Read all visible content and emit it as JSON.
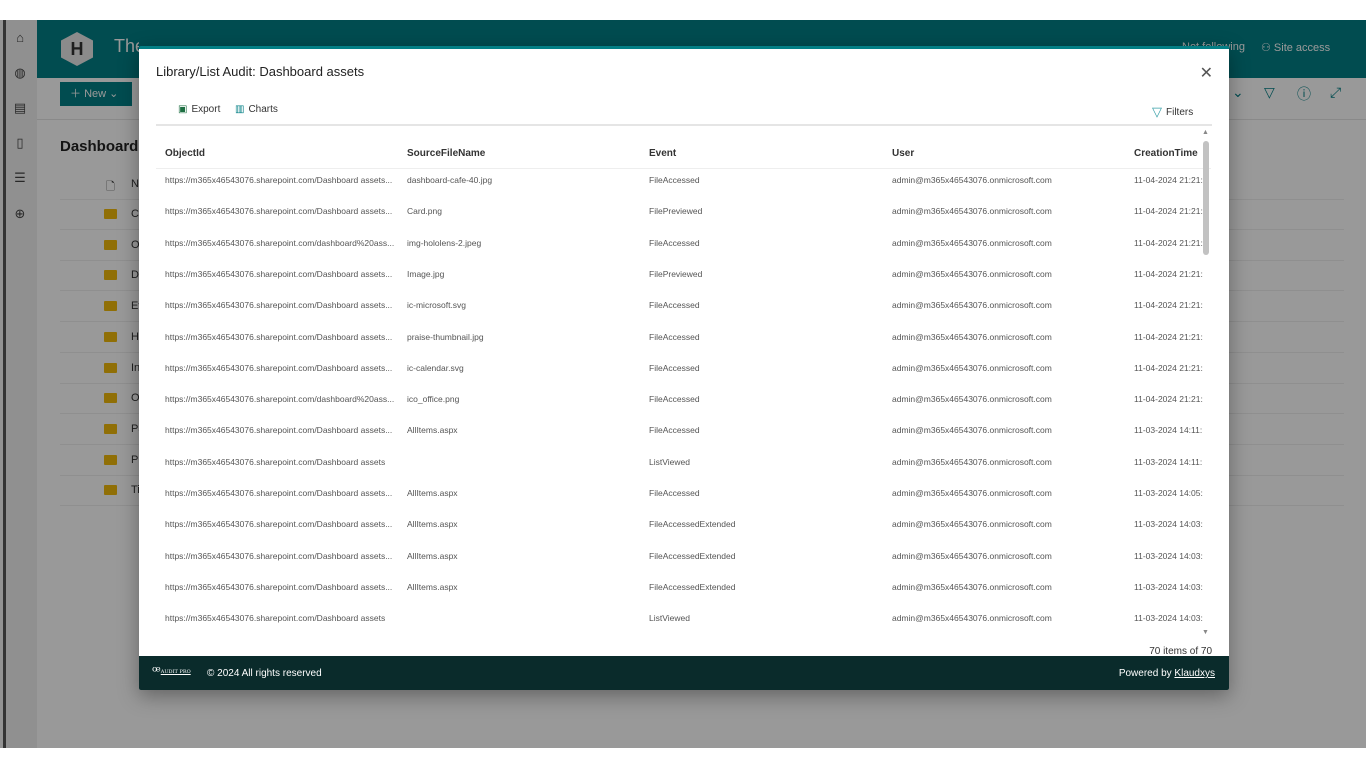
{
  "site": {
    "logo_letter": "H",
    "title": "The Landing",
    "not_following": "Not following",
    "site_access": "Site access",
    "new_label": "New"
  },
  "library": {
    "title": "Dashboard assets",
    "name_header": "Name",
    "folders": [
      "C",
      "O",
      "D",
      "Ev",
      "H",
      "In",
      "O",
      "Pa",
      "Pr",
      "Ti"
    ]
  },
  "modal": {
    "title": "Library/List Audit: Dashboard assets",
    "export_label": "Export",
    "charts_label": "Charts",
    "filters_label": "Filters",
    "columns": [
      "ObjectId",
      "SourceFileName",
      "Event",
      "User",
      "CreationTime"
    ],
    "rows": [
      [
        "https://m365x46543076.sharepoint.com/Dashboard assets...",
        "dashboard-cafe-40.jpg",
        "FileAccessed",
        "admin@m365x46543076.onmicrosoft.com",
        "11-04-2024 21:21:"
      ],
      [
        "https://m365x46543076.sharepoint.com/Dashboard assets...",
        "Card.png",
        "FilePreviewed",
        "admin@m365x46543076.onmicrosoft.com",
        "11-04-2024 21:21:"
      ],
      [
        "https://m365x46543076.sharepoint.com/dashboard%20ass...",
        "img-hololens-2.jpeg",
        "FileAccessed",
        "admin@m365x46543076.onmicrosoft.com",
        "11-04-2024 21:21:"
      ],
      [
        "https://m365x46543076.sharepoint.com/Dashboard assets...",
        "Image.jpg",
        "FilePreviewed",
        "admin@m365x46543076.onmicrosoft.com",
        "11-04-2024 21:21:"
      ],
      [
        "https://m365x46543076.sharepoint.com/Dashboard assets...",
        "ic-microsoft.svg",
        "FileAccessed",
        "admin@m365x46543076.onmicrosoft.com",
        "11-04-2024 21:21:"
      ],
      [
        "https://m365x46543076.sharepoint.com/Dashboard assets...",
        "praise-thumbnail.jpg",
        "FileAccessed",
        "admin@m365x46543076.onmicrosoft.com",
        "11-04-2024 21:21:"
      ],
      [
        "https://m365x46543076.sharepoint.com/Dashboard assets...",
        "ic-calendar.svg",
        "FileAccessed",
        "admin@m365x46543076.onmicrosoft.com",
        "11-04-2024 21:21:"
      ],
      [
        "https://m365x46543076.sharepoint.com/dashboard%20ass...",
        "ico_office.png",
        "FileAccessed",
        "admin@m365x46543076.onmicrosoft.com",
        "11-04-2024 21:21:"
      ],
      [
        "https://m365x46543076.sharepoint.com/Dashboard assets...",
        "AllItems.aspx",
        "FileAccessed",
        "admin@m365x46543076.onmicrosoft.com",
        "11-03-2024 14:11:"
      ],
      [
        "https://m365x46543076.sharepoint.com/Dashboard assets",
        "",
        "ListViewed",
        "admin@m365x46543076.onmicrosoft.com",
        "11-03-2024 14:11:"
      ],
      [
        "https://m365x46543076.sharepoint.com/Dashboard assets...",
        "AllItems.aspx",
        "FileAccessed",
        "admin@m365x46543076.onmicrosoft.com",
        "11-03-2024 14:05:"
      ],
      [
        "https://m365x46543076.sharepoint.com/Dashboard assets...",
        "AllItems.aspx",
        "FileAccessedExtended",
        "admin@m365x46543076.onmicrosoft.com",
        "11-03-2024 14:03:"
      ],
      [
        "https://m365x46543076.sharepoint.com/Dashboard assets...",
        "AllItems.aspx",
        "FileAccessedExtended",
        "admin@m365x46543076.onmicrosoft.com",
        "11-03-2024 14:03:"
      ],
      [
        "https://m365x46543076.sharepoint.com/Dashboard assets...",
        "AllItems.aspx",
        "FileAccessedExtended",
        "admin@m365x46543076.onmicrosoft.com",
        "11-03-2024 14:03:"
      ],
      [
        "https://m365x46543076.sharepoint.com/Dashboard assets",
        "",
        "ListViewed",
        "admin@m365x46543076.onmicrosoft.com",
        "11-03-2024 14:03:"
      ]
    ],
    "item_count": "70 items of 70",
    "footer": {
      "logo_text": "SP AUDIT PRO",
      "copyright": "© 2024 All rights reserved",
      "powered_by": "Powered by",
      "powered_link": "Klaudxys"
    }
  },
  "colors": {
    "brand": "#037f85",
    "footer": "#0a2b2b"
  }
}
